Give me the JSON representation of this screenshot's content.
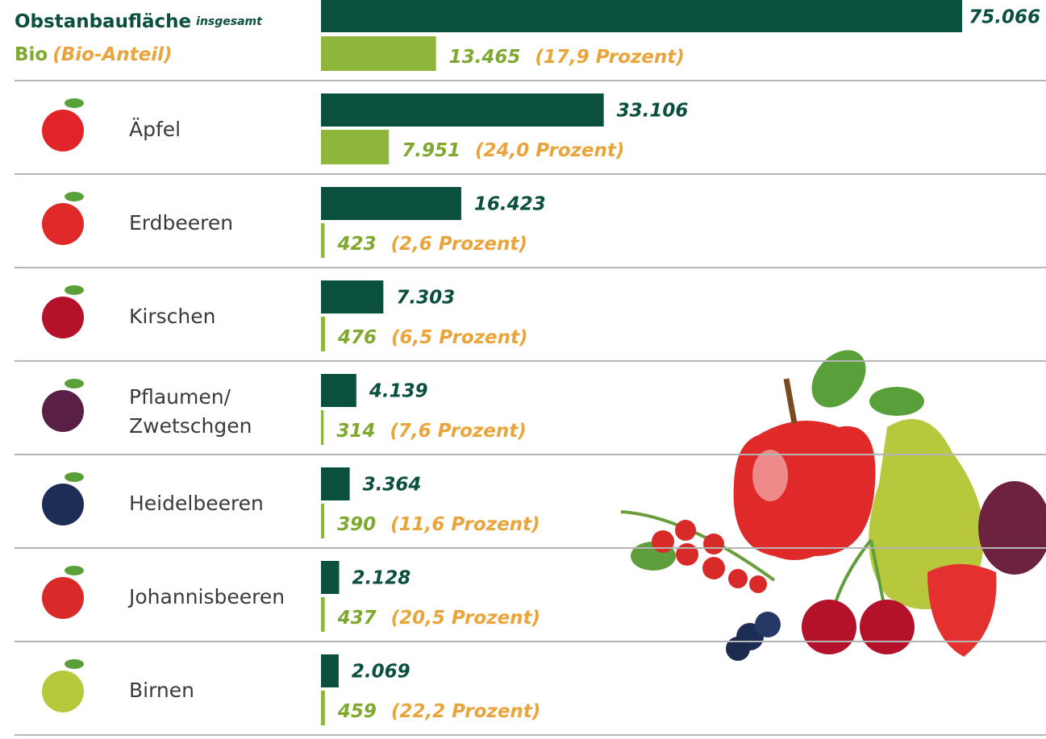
{
  "chart_data": {
    "type": "bar",
    "categories": [
      null,
      "Äpfel",
      "Erdbeeren",
      "Kirschen",
      "Pflaumen/Zwetschgen",
      "Heidelbeeren",
      "Johannisbeeren",
      "Birnen"
    ],
    "xlim": [
      0,
      75066
    ],
    "series": [
      {
        "name": "Obstanbaufläche",
        "name_note": "insgesamt",
        "color": "#0b4f3e",
        "values": [
          75066,
          33106,
          16423,
          7303,
          4139,
          3364,
          2128,
          2069
        ],
        "value_labels": [
          "75.066",
          "33.106",
          "16.423",
          "7.303",
          "4.139",
          "3.364",
          "2.128",
          "2.069"
        ]
      },
      {
        "name": "Bio",
        "name_note": "(Bio-Anteil)",
        "color": "#8db63a",
        "values": [
          13465,
          7951,
          423,
          476,
          314,
          390,
          437,
          459
        ],
        "value_labels": [
          "13.465",
          "7.951",
          "423",
          "476",
          "314",
          "390",
          "437",
          "459"
        ]
      }
    ],
    "bio_share": {
      "values": [
        17.9,
        24.0,
        2.6,
        6.5,
        7.6,
        11.6,
        20.5,
        22.2
      ],
      "value_labels": [
        "(17,9 Prozent)",
        "(24,0 Prozent)",
        "(2,6 Prozent)",
        "(6,5 Prozent)",
        "(7,6 Prozent)",
        "(11,6 Prozent)",
        "(20,5 Prozent)",
        "(22,2 Prozent)"
      ]
    }
  }
}
